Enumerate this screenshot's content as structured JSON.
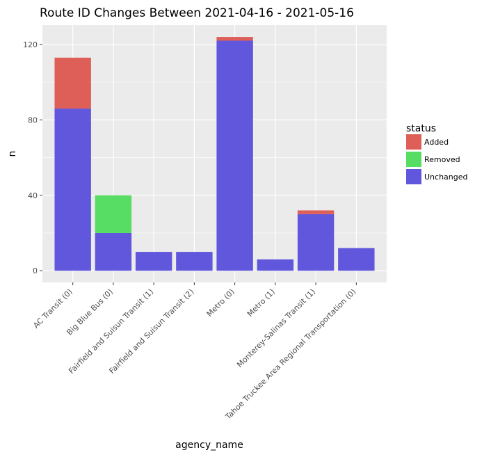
{
  "chart_data": {
    "type": "bar",
    "stacked": true,
    "title": "Route ID Changes Between 2021-04-16 - 2021-05-16",
    "xlabel": "agency_name",
    "ylabel": "n",
    "ylim": [
      0,
      130
    ],
    "yticks": [
      0,
      40,
      80,
      120
    ],
    "grid": true,
    "legend": {
      "title": "status",
      "placement": "right"
    },
    "categories": [
      "AC Transit (0)",
      "Big Blue Bus (0)",
      "Fairfield and Suisun Transit (1)",
      "Fairfield and Suisun Transit (2)",
      "Metro (0)",
      "Metro (1)",
      "Monterey-Salinas Transit (1)",
      "Tahoe Truckee Area Regional Transportation (0)"
    ],
    "series": [
      {
        "name": "Unchanged",
        "color": "#6157dd",
        "values": [
          86,
          20,
          10,
          10,
          122,
          6,
          30,
          12
        ]
      },
      {
        "name": "Removed",
        "color": "#57dd63",
        "values": [
          0,
          20,
          0,
          0,
          0,
          0,
          0,
          0
        ]
      },
      {
        "name": "Added",
        "color": "#dd5f57",
        "values": [
          27,
          0,
          0,
          0,
          2,
          0,
          2,
          0
        ]
      }
    ],
    "legend_order": [
      "Added",
      "Removed",
      "Unchanged"
    ]
  }
}
